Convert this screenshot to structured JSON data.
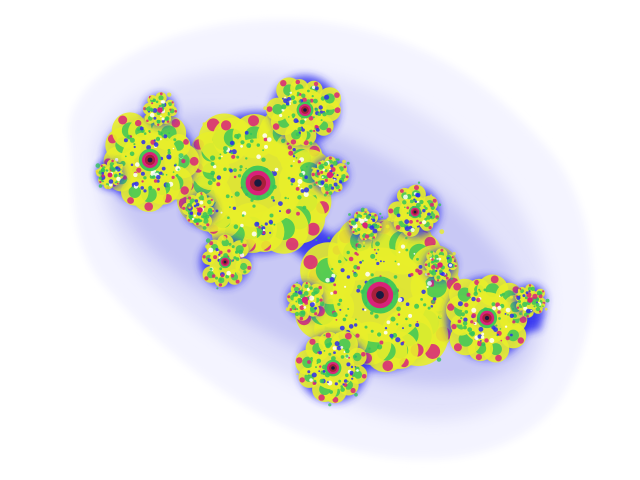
{
  "image": {
    "subject": "fractal",
    "colors": {
      "background": "#ffffff",
      "halo_outer": "#f4f4ff",
      "halo_mid": "#e2e2fb",
      "halo_inner": "#c8c8f5",
      "body_blue": "#2b2bf0",
      "yellow": "#e8ee2a",
      "green": "#34c45a",
      "magenta": "#d8227a",
      "red": "#a8203a",
      "dark": "#1a1a40",
      "white": "#ffffff"
    }
  }
}
